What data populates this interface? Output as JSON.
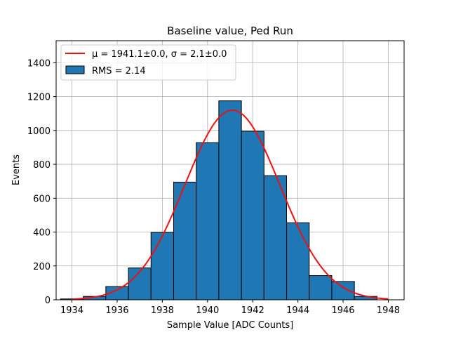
{
  "chart_data": {
    "type": "bar",
    "title": "Baseline value, Ped Run",
    "xlabel": "Sample Value [ADC Counts]",
    "ylabel": "Events",
    "xlim": [
      1933.3,
      1948.7
    ],
    "ylim": [
      0,
      1530
    ],
    "xticks": [
      1934,
      1936,
      1938,
      1940,
      1942,
      1944,
      1946,
      1948
    ],
    "yticks": [
      0,
      200,
      400,
      600,
      800,
      1000,
      1200,
      1400
    ],
    "grid": true,
    "legend_position": "top-left",
    "bin_edges": [
      1933.5,
      1934.5,
      1935.5,
      1936.5,
      1937.5,
      1938.5,
      1939.5,
      1940.5,
      1941.5,
      1942.5,
      1943.5,
      1944.5,
      1945.5,
      1946.5,
      1947.5
    ],
    "series": [
      {
        "name": "RMS = 2.14",
        "kind": "histogram",
        "color": "#1f77b4",
        "values": [
          5,
          20,
          78,
          188,
          398,
          695,
          928,
          1175,
          995,
          733,
          455,
          143,
          108,
          20
        ]
      },
      {
        "name": "μ = 1941.1±0.0, σ = 2.1±0.0",
        "kind": "gaussian-fit",
        "color": "#ee1111",
        "mu": 1941.1,
        "sigma": 2.1,
        "amplitude": 1120,
        "x_range": [
          1934,
          1948
        ]
      }
    ]
  }
}
